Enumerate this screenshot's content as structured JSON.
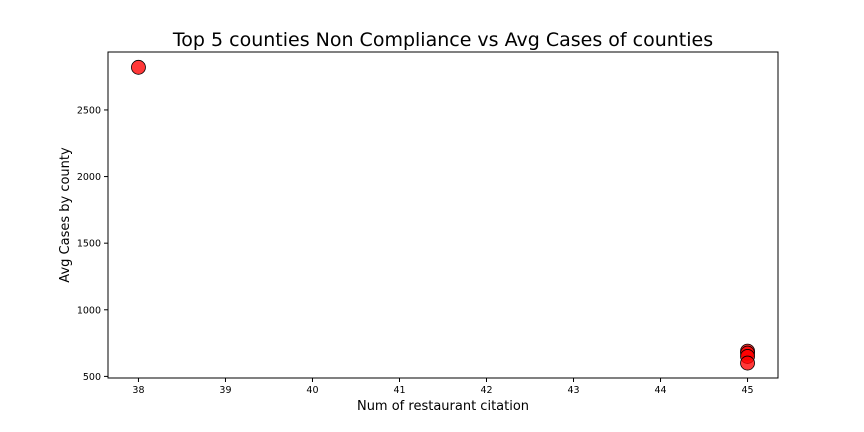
{
  "chart_data": {
    "type": "scatter",
    "title": "Top 5 counties Non Compliance vs Avg Cases of counties",
    "xlabel": "Num of restaurant citation",
    "ylabel": "Avg Cases by county",
    "xlim": [
      37.65,
      45.35
    ],
    "ylim": [
      488,
      2935
    ],
    "xticks": [
      38,
      39,
      40,
      41,
      42,
      43,
      44,
      45
    ],
    "yticks": [
      500,
      1000,
      1500,
      2000,
      2500
    ],
    "grid": false,
    "marker_color": "#ff0000",
    "marker_edge_color": "#000000",
    "points": [
      {
        "x": 38,
        "y": 2820
      },
      {
        "x": 45,
        "y": 690
      },
      {
        "x": 45,
        "y": 675
      },
      {
        "x": 45,
        "y": 650
      },
      {
        "x": 45,
        "y": 600
      }
    ]
  }
}
